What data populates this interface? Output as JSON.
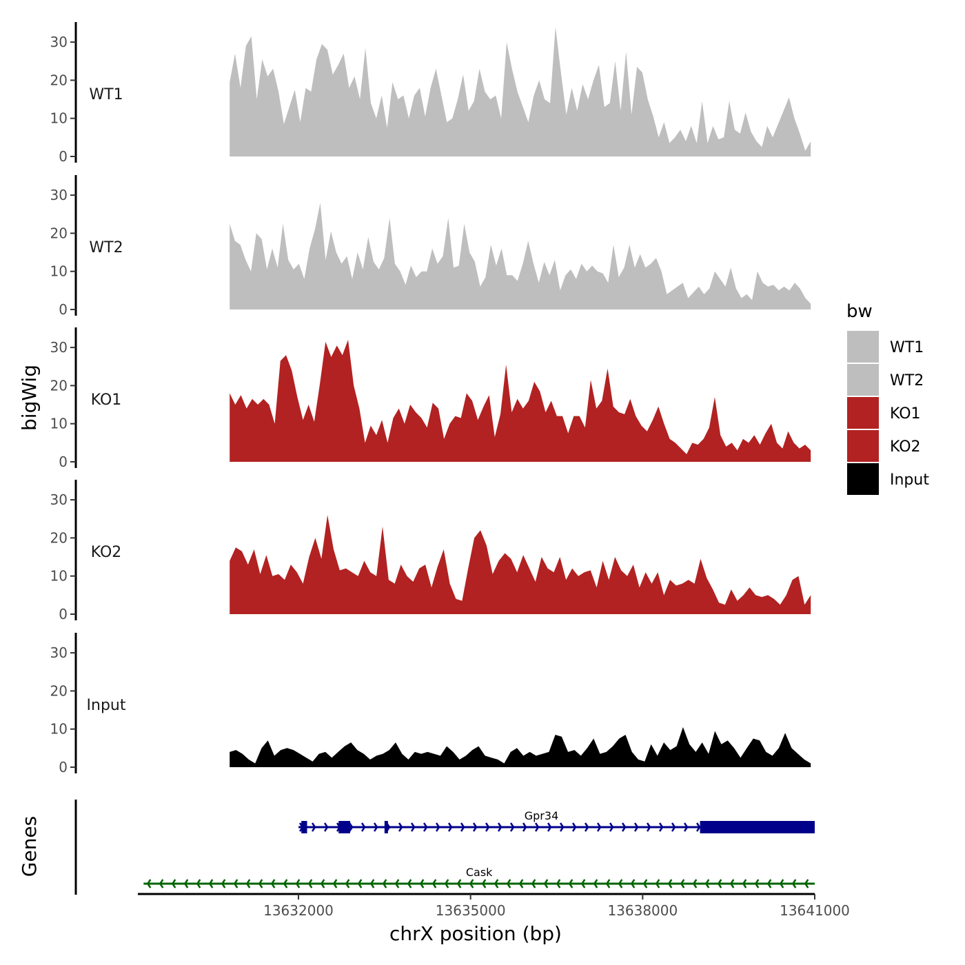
{
  "chart_data": {
    "type": "area",
    "xlabel": "chrX position (bp)",
    "ylabel": "bigWig",
    "genes_label": "Genes",
    "xlim": [
      13629200,
      13641000
    ],
    "x_ticks": [
      {
        "value": 13632000,
        "label": "13632000"
      },
      {
        "value": 13635000,
        "label": "13635000"
      },
      {
        "value": 13638000,
        "label": "13638000"
      },
      {
        "value": 13641000,
        "label": "13641000"
      }
    ],
    "ylim": [
      0,
      35
    ],
    "y_ticks": [
      {
        "value": 0,
        "label": "0"
      },
      {
        "value": 10,
        "label": "10"
      },
      {
        "value": 20,
        "label": "20"
      },
      {
        "value": 30,
        "label": "30"
      }
    ],
    "legend": {
      "title": "bw",
      "entries": [
        {
          "label": "WT1",
          "color": "#bebebe"
        },
        {
          "label": "WT2",
          "color": "#bebebe"
        },
        {
          "label": "KO1",
          "color": "#b22222"
        },
        {
          "label": "KO2",
          "color": "#b22222"
        },
        {
          "label": "Input",
          "color": "#000000"
        }
      ]
    },
    "series": [
      {
        "name": "WT1",
        "color": "#bebebe",
        "x_start": 13630800,
        "x_end": 13640930,
        "values": [
          19.5,
          27,
          18,
          29,
          31.5,
          15,
          25.5,
          21,
          23,
          17,
          8.5,
          13,
          17.5,
          9,
          18,
          17,
          25.5,
          29.5,
          28,
          21.5,
          24,
          27,
          18,
          21,
          15,
          28.5,
          14,
          10,
          16,
          7.5,
          19.5,
          15,
          16,
          10,
          16,
          18,
          10.5,
          18,
          23,
          16,
          9,
          10,
          15,
          21.5,
          12,
          14.5,
          23,
          17,
          15,
          16,
          10,
          30,
          23,
          17,
          13,
          9,
          16,
          20,
          15,
          14,
          34,
          22,
          11,
          18,
          12,
          19,
          15,
          20,
          24,
          13,
          14,
          25,
          12,
          27.5,
          11,
          23.5,
          22,
          15,
          10.5,
          5,
          9,
          3.5,
          5,
          7,
          4,
          8,
          3.5,
          14.5,
          3.5,
          8,
          4.5,
          5,
          14.5,
          7,
          6,
          11.5,
          6.5,
          4,
          2.5,
          8,
          5,
          8.5,
          12,
          15.5,
          10,
          6,
          1.5,
          4
        ]
      },
      {
        "name": "WT2",
        "color": "#bebebe",
        "x_start": 13630800,
        "x_end": 13640930,
        "values": [
          22.5,
          18,
          17,
          13,
          10,
          20,
          18.5,
          10.5,
          16,
          11,
          22.5,
          13,
          10.5,
          12,
          8,
          16,
          21,
          28,
          13,
          20.5,
          15,
          12,
          14,
          8,
          15,
          10.5,
          19,
          12.5,
          10.5,
          13.5,
          24,
          12,
          10,
          6.5,
          11.5,
          8.5,
          10,
          10,
          16,
          12,
          14,
          24,
          11,
          11.5,
          22.5,
          15,
          12.5,
          6,
          8.5,
          17,
          11.5,
          16,
          9,
          9,
          7.5,
          12,
          18,
          12,
          7,
          12.5,
          9,
          13,
          5,
          9,
          10.5,
          8,
          12,
          10,
          11.5,
          10,
          9.5,
          7,
          17,
          8.5,
          11,
          17,
          11,
          14.5,
          11,
          12,
          13.5,
          10,
          4,
          5,
          6,
          7,
          3,
          4.5,
          6,
          4,
          5.5,
          10,
          8,
          6,
          11,
          5.5,
          3,
          4,
          2.5,
          10,
          7,
          6,
          6.5,
          5,
          6,
          5,
          7,
          5.5,
          3,
          1.5
        ]
      },
      {
        "name": "KO1",
        "color": "#b22222",
        "x_start": 13630800,
        "x_end": 13640930,
        "values": [
          18,
          15,
          17.5,
          14,
          16.5,
          15,
          16.5,
          15,
          10,
          26.5,
          28,
          24,
          17,
          11,
          15,
          10.5,
          20.5,
          31.5,
          27.5,
          30.5,
          28,
          32,
          20,
          14,
          5,
          9.5,
          7,
          11,
          5,
          11.5,
          14,
          10,
          15,
          13,
          11.5,
          9,
          15.5,
          14,
          6,
          10,
          12,
          11.5,
          18,
          16,
          11,
          14.5,
          17.5,
          6.5,
          12.5,
          25.5,
          13,
          16.5,
          14,
          16,
          21,
          18.5,
          13,
          16,
          12,
          12,
          7.5,
          12,
          12,
          9,
          21.5,
          14,
          16,
          24.5,
          14.5,
          13,
          12.5,
          16.5,
          12,
          9.5,
          8,
          11,
          14.5,
          10,
          6,
          5,
          3.5,
          2,
          5,
          4.5,
          6,
          9,
          17,
          7,
          4,
          5,
          3,
          6,
          5,
          7,
          4.5,
          7.5,
          10,
          5,
          3.5,
          8,
          5,
          3.5,
          4.5,
          3
        ]
      },
      {
        "name": "KO2",
        "color": "#b22222",
        "x_start": 13630800,
        "x_end": 13640930,
        "values": [
          14,
          17.5,
          16.5,
          13,
          17,
          10.5,
          15.5,
          10,
          10.5,
          9,
          13,
          11,
          8,
          15,
          20,
          14.5,
          26,
          17,
          11.5,
          12,
          11,
          10,
          14,
          11,
          10,
          23,
          9,
          8,
          13,
          10,
          8.5,
          12,
          13,
          7,
          12.5,
          17,
          8,
          4,
          3.5,
          12,
          20,
          22,
          18,
          10.5,
          14,
          16,
          14.5,
          11,
          15.5,
          12,
          8.5,
          15,
          12,
          11,
          15,
          9,
          12,
          10,
          11,
          11.5,
          7,
          14,
          9,
          15,
          11.5,
          10,
          13,
          7,
          11,
          8,
          11,
          5,
          9,
          7.5,
          8,
          9,
          8,
          14.5,
          9.5,
          6.5,
          3,
          2.5,
          6.5,
          3.5,
          5,
          7,
          5,
          4.5,
          5,
          4,
          2.5,
          5,
          9,
          10,
          2.5,
          5
        ]
      },
      {
        "name": "Input",
        "color": "#000000",
        "x_start": 13630800,
        "x_end": 13640930,
        "values": [
          4,
          4.5,
          3.5,
          2,
          1,
          5,
          7,
          3,
          4.5,
          5,
          4.5,
          3.5,
          2.5,
          1.5,
          3.5,
          4,
          2.5,
          4,
          5.5,
          6.5,
          4.5,
          3.5,
          2,
          3,
          3.5,
          4.5,
          6.5,
          3.5,
          2,
          4,
          3.5,
          4,
          3.5,
          3,
          5.5,
          4,
          2,
          3,
          4.5,
          5.5,
          3,
          2.5,
          2,
          1,
          4,
          5,
          3,
          4,
          3,
          3.5,
          4,
          8.5,
          8,
          4,
          4.5,
          3,
          5,
          7.5,
          3.5,
          4,
          5.5,
          7.5,
          8.5,
          4,
          2,
          1.5,
          6,
          3,
          6.5,
          4.5,
          5.5,
          10.5,
          6,
          4,
          6.5,
          3.5,
          9.5,
          6,
          7,
          5,
          2.5,
          5,
          7.5,
          7,
          4,
          3,
          5,
          9,
          5,
          3.5,
          2,
          1
        ]
      }
    ],
    "genes": [
      {
        "name": "Gpr34",
        "color": "#00008b",
        "strand": "+",
        "start": 13632000,
        "end": 13641000,
        "exons": [
          [
            13632050,
            13632150
          ],
          [
            13632700,
            13632900
          ],
          [
            13633500,
            13633560
          ],
          [
            13639000,
            13641000
          ]
        ]
      },
      {
        "name": "Cask",
        "color": "#006400",
        "strand": "-",
        "start": 13629300,
        "end": 13641000,
        "exons": []
      }
    ]
  }
}
